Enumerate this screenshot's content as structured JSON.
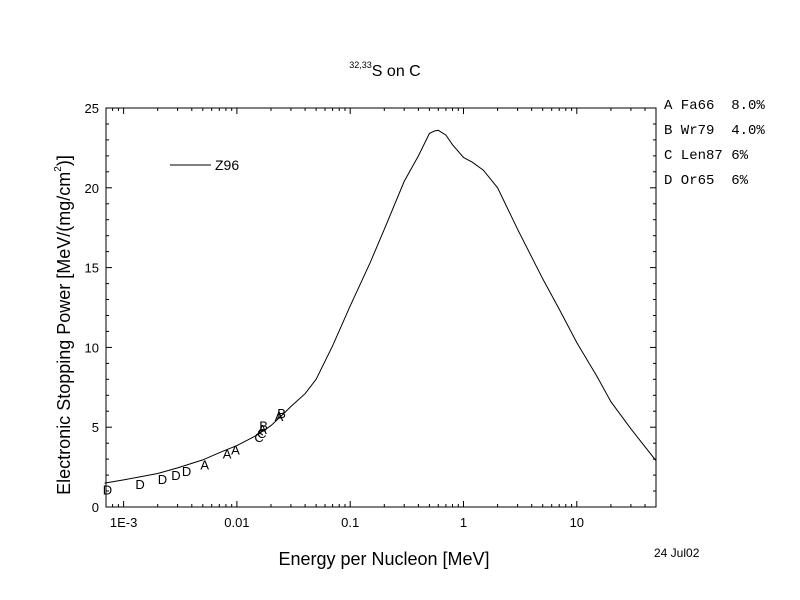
{
  "chart_data": {
    "type": "line",
    "title": {
      "sup": "32,33",
      "main": "S on C"
    },
    "xlabel": "Energy per Nucleon [MeV]",
    "ylabel": {
      "main": "Electronic Stopping Power [MeV/(mg/cm",
      "sup": "2",
      "end": ")]"
    },
    "xscale": "log",
    "xlim": [
      0.0007,
      50
    ],
    "ylim": [
      0,
      25
    ],
    "x_ticks": [
      {
        "value": 0.001,
        "label": "1E-3"
      },
      {
        "value": 0.01,
        "label": "0.01"
      },
      {
        "value": 0.1,
        "label": "0.1"
      },
      {
        "value": 1,
        "label": "1"
      },
      {
        "value": 10,
        "label": "10"
      }
    ],
    "y_ticks": [
      {
        "value": 0,
        "label": "0"
      },
      {
        "value": 5,
        "label": "5"
      },
      {
        "value": 10,
        "label": "10"
      },
      {
        "value": 15,
        "label": "15"
      },
      {
        "value": 20,
        "label": "20"
      },
      {
        "value": 25,
        "label": "25"
      }
    ],
    "series": [
      {
        "name": "Z96",
        "x": [
          0.00068,
          0.001,
          0.002,
          0.003,
          0.005,
          0.007,
          0.01,
          0.015,
          0.02,
          0.025,
          0.03,
          0.04,
          0.05,
          0.07,
          0.1,
          0.15,
          0.2,
          0.3,
          0.4,
          0.5,
          0.55,
          0.6,
          0.7,
          0.8,
          1.0,
          1.2,
          1.5,
          2.0,
          3.0,
          5.0,
          7.0,
          10.0,
          15.0,
          20.0,
          30.0,
          50.0
        ],
        "y": [
          1.5,
          1.7,
          2.1,
          2.45,
          2.95,
          3.4,
          3.85,
          4.5,
          5.1,
          5.75,
          6.3,
          7.1,
          8.0,
          10.1,
          12.6,
          15.3,
          17.4,
          20.4,
          22.0,
          23.4,
          23.55,
          23.6,
          23.3,
          22.7,
          21.9,
          21.6,
          21.1,
          20.0,
          17.4,
          14.3,
          12.4,
          10.3,
          8.2,
          6.6,
          4.9,
          2.9
        ]
      }
    ],
    "markers": [
      {
        "symbol": "D",
        "x": 0.00072,
        "y": 1.1
      },
      {
        "symbol": "D",
        "x": 0.0014,
        "y": 1.45
      },
      {
        "symbol": "D",
        "x": 0.0022,
        "y": 1.75
      },
      {
        "symbol": "D",
        "x": 0.0029,
        "y": 2.0
      },
      {
        "symbol": "D",
        "x": 0.0036,
        "y": 2.25
      },
      {
        "symbol": "A",
        "x": 0.0052,
        "y": 2.65
      },
      {
        "symbol": "A",
        "x": 0.0082,
        "y": 3.35
      },
      {
        "symbol": "A",
        "x": 0.0097,
        "y": 3.6
      },
      {
        "symbol": "C",
        "x": 0.0157,
        "y": 4.4
      },
      {
        "symbol": "C",
        "x": 0.0166,
        "y": 4.65
      },
      {
        "symbol": "A",
        "x": 0.0168,
        "y": 4.9
      },
      {
        "symbol": "B",
        "x": 0.0172,
        "y": 5.1
      },
      {
        "symbol": "A",
        "x": 0.0235,
        "y": 5.7
      },
      {
        "symbol": "B",
        "x": 0.0248,
        "y": 5.9
      }
    ],
    "legend_inside": {
      "label": "Z96",
      "placement": "top-left"
    },
    "legend_outside": [
      "A Fa66  8.0%",
      "B Wr79  4.0%",
      "C Len87 6%",
      "D Or65  6%"
    ],
    "date": "24 Jul02"
  }
}
